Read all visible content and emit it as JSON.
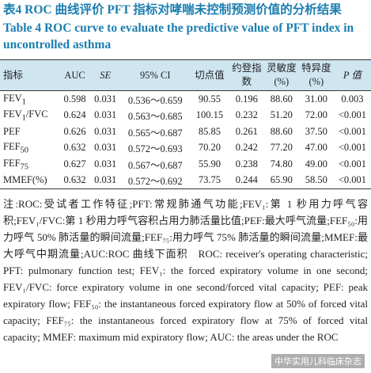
{
  "header": {
    "title_cn": "表4  ROC 曲线评价 PFT 指标对哮喘未控制预测价值的分析结果",
    "title_en": "Table 4   ROC curve to evaluate the predictive value of PFT index in uncontrolled asthma"
  },
  "table": {
    "columns": [
      "指标",
      "AUC",
      "SE",
      "95% CI",
      "切点值",
      "约登指数",
      "灵敏度(%)",
      "特异度(%)",
      "P 值"
    ],
    "rows": [
      [
        {
          "text": "FEV",
          "sub": "1"
        },
        "0.598",
        "0.031",
        "0.536～0.659",
        "90.55",
        "0.196",
        "88.60",
        "31.00",
        "0.003"
      ],
      [
        {
          "text": "FEV",
          "sub": "1",
          "after": "/FVC"
        },
        "0.624",
        "0.031",
        "0.563～0.685",
        "100.15",
        "0.232",
        "51.20",
        "72.00",
        "<0.001"
      ],
      [
        {
          "text": "PEF"
        },
        "0.626",
        "0.031",
        "0.565～0.687",
        "85.85",
        "0.261",
        "88.60",
        "37.50",
        "<0.001"
      ],
      [
        {
          "text": "FEF",
          "sub": "50"
        },
        "0.632",
        "0.031",
        "0.572～0.693",
        "70.20",
        "0.242",
        "77.20",
        "47.00",
        "<0.001"
      ],
      [
        {
          "text": "FEF",
          "sub": "75"
        },
        "0.627",
        "0.031",
        "0.567～0.687",
        "55.90",
        "0.238",
        "74.80",
        "49.00",
        "<0.001"
      ],
      [
        {
          "text": "MMEF(%)"
        },
        "0.632",
        "0.031",
        "0.572～0.692",
        "73.75",
        "0.244",
        "65.90",
        "58.50",
        "<0.001"
      ]
    ]
  },
  "note_cn": "注:ROC:受试者工作特征;PFT:常规肺通气功能;FEV₁:第 1 秒用力呼气容积;FEV₁/FVC:第 1 秒用力呼气容积占用力肺活量比值;PEF:最大呼气流量;FEF₅₀:用力呼气 50% 肺活量的瞬间流量;FEF₇₅:用力呼气 75% 肺活量的瞬间流量;MMEF:最大呼气中期流量;AUC:ROC 曲线下面积",
  "note_en": "ROC: receiver's operating characteristic; PFT: pulmonary function test; FEV₁: the forced expiratory volume in one second; FEV₁/FVC: force expiratory volume in one second/forced vital capacity; PEF: peak expiratory flow; FEF₅₀: the instantaneous forced expiratory flow at 50% of forced vital capacity; FEF₇₅: the instantaneous forced expiratory flow at 75% of forced vital capacity; MMEF: maximum mid expiratory flow; AUC: the areas under the ROC",
  "watermark": "中华实用儿科临床杂志"
}
